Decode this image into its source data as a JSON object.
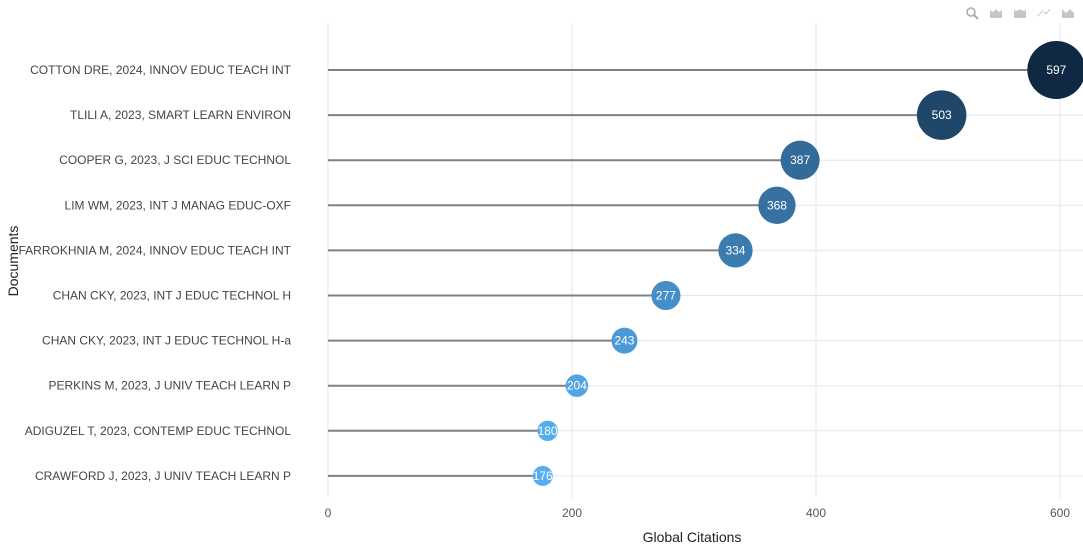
{
  "toolbar": {
    "icons": [
      "zoom-icon",
      "zoom-in-box-icon",
      "zoom-out-box-icon",
      "autoscale-icon",
      "reset-axes-icon"
    ]
  },
  "chart_data": {
    "type": "lollipop",
    "xlabel": "Global Citations",
    "ylabel": "Documents",
    "xlim": [
      0,
      620
    ],
    "xticks": [
      0,
      200,
      400,
      600
    ],
    "grid": true,
    "categories": [
      "COTTON DRE, 2024, INNOV EDUC TEACH INT",
      "TLILI A, 2023, SMART LEARN ENVIRON",
      "COOPER G, 2023, J SCI EDUC TECHNOL",
      "LIM WM, 2023, INT J MANAG EDUC-OXF",
      "FARROKHNIA M, 2024, INNOV EDUC TEACH INT",
      "CHAN CKY, 2023, INT J EDUC TECHNOL H",
      "CHAN CKY, 2023, INT J EDUC TECHNOL H-a",
      "PERKINS M, 2023, J UNIV TEACH LEARN P",
      "ADIGUZEL T, 2023, CONTEMP EDUC TECHNOL",
      "CRAWFORD J, 2023, J UNIV TEACH LEARN P"
    ],
    "values": [
      597,
      503,
      387,
      368,
      334,
      277,
      243,
      204,
      180,
      176
    ],
    "colors": {
      "low": "#56aef0",
      "high": "#0f2944",
      "stem": "#808080",
      "grid": "#e6e6e6",
      "label_text": "#444444"
    }
  }
}
